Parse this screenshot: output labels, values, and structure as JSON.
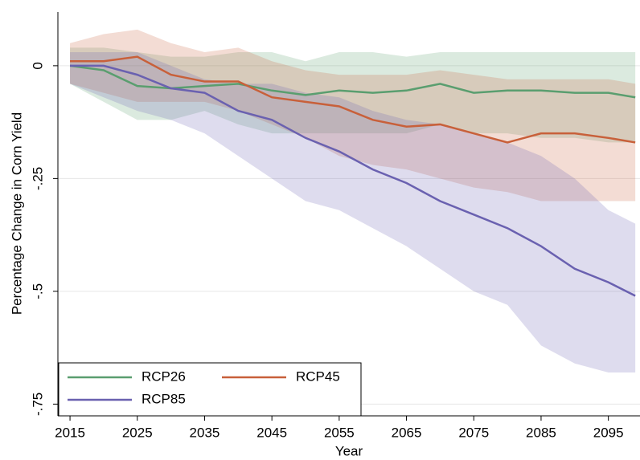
{
  "chart_data": {
    "type": "band-line",
    "x_label": "Year",
    "y_label": "Percentage Change in Corn Yield",
    "x": [
      2015,
      2020,
      2025,
      2030,
      2035,
      2040,
      2045,
      2050,
      2055,
      2060,
      2065,
      2070,
      2075,
      2080,
      2085,
      2090,
      2095,
      2099
    ],
    "xlim": [
      2013.2,
      2099.7
    ],
    "xticks": [
      2015,
      2025,
      2035,
      2045,
      2055,
      2065,
      2075,
      2085,
      2095
    ],
    "ylim": [
      -0.776,
      0.119
    ],
    "yticks": [
      0,
      {
        "value": -0.25,
        "label": "-.25"
      },
      {
        "value": -0.5,
        "label": "-.5"
      },
      {
        "value": -0.75,
        "label": "-.75"
      }
    ],
    "grid": true,
    "legend_position": "bottom-left",
    "series": [
      {
        "name": "RCP26",
        "color": "#5a9e6f",
        "values": [
          0,
          -0.01,
          -0.045,
          -0.05,
          -0.045,
          -0.04,
          -0.055,
          -0.065,
          -0.055,
          -0.06,
          -0.055,
          -0.04,
          -0.06,
          -0.055,
          -0.055,
          -0.06,
          -0.06,
          -0.07
        ],
        "upper": [
          0.04,
          0.04,
          0.03,
          0.02,
          0.02,
          0.03,
          0.03,
          0.01,
          0.03,
          0.03,
          0.02,
          0.03,
          0.03,
          0.03,
          0.03,
          0.03,
          0.03,
          0.03
        ],
        "lower": [
          -0.04,
          -0.08,
          -0.12,
          -0.12,
          -0.1,
          -0.13,
          -0.15,
          -0.15,
          -0.15,
          -0.15,
          -0.15,
          -0.13,
          -0.15,
          -0.15,
          -0.16,
          -0.16,
          -0.17,
          -0.17
        ]
      },
      {
        "name": "RCP45",
        "color": "#c8603a",
        "values": [
          0.01,
          0.01,
          0.02,
          -0.02,
          -0.035,
          -0.035,
          -0.07,
          -0.08,
          -0.09,
          -0.12,
          -0.135,
          -0.13,
          -0.15,
          -0.17,
          -0.15,
          -0.15,
          -0.16,
          -0.17
        ],
        "upper": [
          0.05,
          0.07,
          0.08,
          0.05,
          0.03,
          0.04,
          0.01,
          -0.01,
          -0.02,
          -0.02,
          -0.02,
          -0.01,
          -0.02,
          -0.03,
          -0.03,
          -0.03,
          -0.03,
          -0.04
        ],
        "lower": [
          -0.04,
          -0.06,
          -0.08,
          -0.08,
          -0.08,
          -0.1,
          -0.13,
          -0.16,
          -0.2,
          -0.22,
          -0.23,
          -0.25,
          -0.27,
          -0.28,
          -0.3,
          -0.3,
          -0.3,
          -0.3
        ]
      },
      {
        "name": "RCP85",
        "color": "#6a61b0",
        "values": [
          0,
          0,
          -0.02,
          -0.05,
          -0.06,
          -0.1,
          -0.12,
          -0.16,
          -0.19,
          -0.23,
          -0.26,
          -0.3,
          -0.33,
          -0.36,
          -0.4,
          -0.45,
          -0.48,
          -0.51
        ],
        "upper": [
          0.03,
          0.03,
          0.03,
          0,
          -0.03,
          -0.04,
          -0.04,
          -0.06,
          -0.07,
          -0.1,
          -0.12,
          -0.13,
          -0.15,
          -0.17,
          -0.2,
          -0.25,
          -0.32,
          -0.35
        ],
        "lower": [
          -0.04,
          -0.07,
          -0.1,
          -0.12,
          -0.15,
          -0.2,
          -0.25,
          -0.3,
          -0.32,
          -0.36,
          -0.4,
          -0.45,
          -0.5,
          -0.53,
          -0.62,
          -0.66,
          -0.68,
          -0.68
        ]
      }
    ]
  }
}
